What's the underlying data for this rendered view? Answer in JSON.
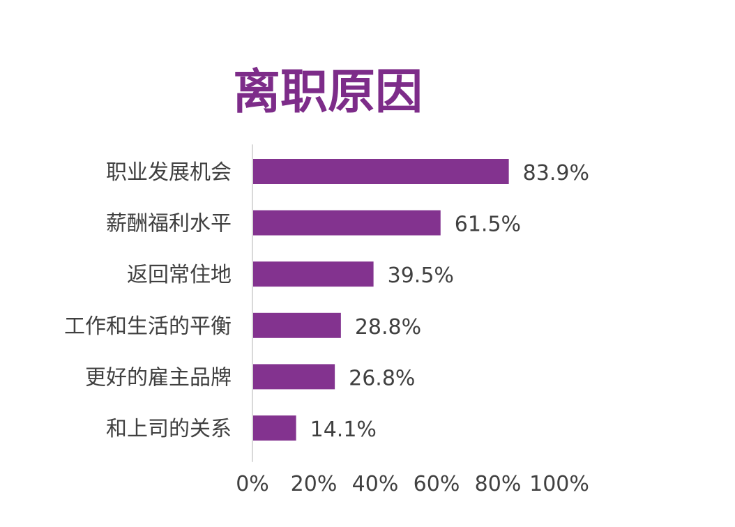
{
  "chart_data": {
    "type": "bar",
    "orientation": "horizontal",
    "title": "离职原因",
    "categories": [
      "职业发展机会",
      "薪酬福利水平",
      "返回常住地",
      "工作和生活的平衡",
      "更好的雇主品牌",
      "和上司的关系"
    ],
    "values": [
      83.9,
      61.5,
      39.5,
      28.8,
      26.8,
      14.1
    ],
    "value_labels": [
      "83.9%",
      "61.5%",
      "39.5%",
      "28.8%",
      "26.8%",
      "14.1%"
    ],
    "xlim": [
      0,
      100
    ],
    "x_ticks": [
      0,
      20,
      40,
      60,
      80,
      100
    ],
    "x_tick_labels": [
      "0%",
      "20%",
      "40%",
      "60%",
      "80%",
      "100%"
    ],
    "xlabel": "",
    "ylabel": "",
    "grid": false,
    "legend": "none"
  },
  "colors": {
    "bar": "#83338f",
    "title": "#7d2c89",
    "axis_line": "#d9d9d9",
    "text": "#404040"
  }
}
